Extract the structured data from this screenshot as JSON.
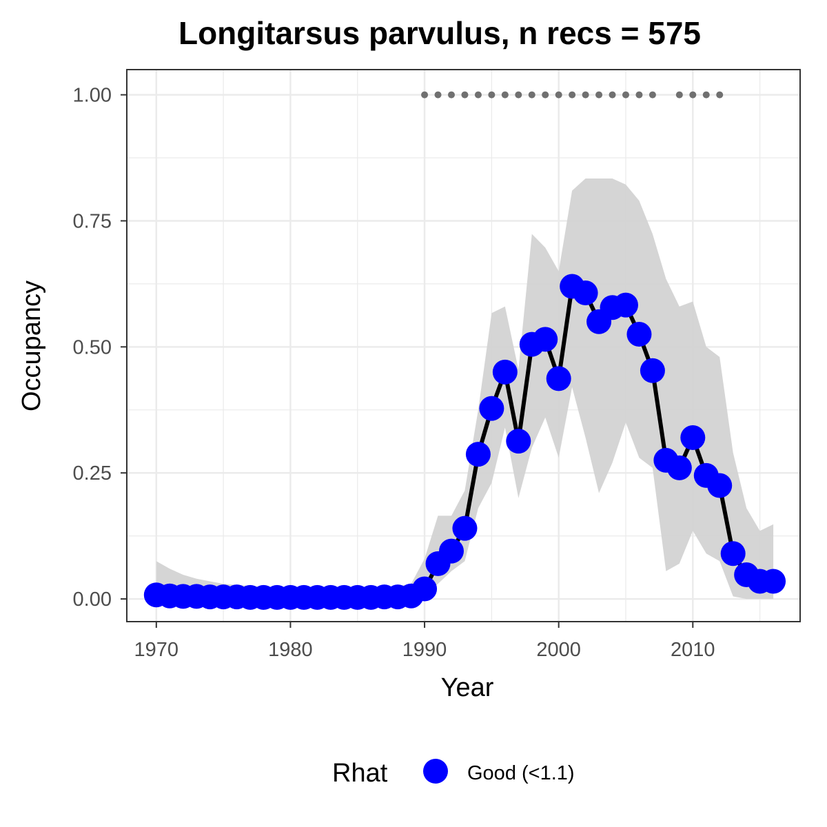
{
  "chart_data": {
    "type": "line",
    "title": "Longitarsus parvulus, n recs = 575",
    "xlabel": "Year",
    "ylabel": "Occupancy",
    "xlim": [
      1967.8,
      2018.0
    ],
    "ylim": [
      -0.045,
      1.05
    ],
    "x_ticks": [
      1970,
      1980,
      1990,
      2000,
      2010
    ],
    "x_tick_labels": [
      "1970",
      "1980",
      "1990",
      "2000",
      "2010"
    ],
    "y_ticks": [
      0,
      0.25,
      0.5,
      0.75,
      1.0
    ],
    "y_tick_labels": [
      "0.00",
      "0.25",
      "0.50",
      "0.75",
      "1.00"
    ],
    "grid": true,
    "legend_position": "bottom",
    "colors": {
      "points": "#0000ff",
      "line": "#000000",
      "ribbon": "#d3d3d3",
      "record_dots": "#707070",
      "grid": "#ebebeb",
      "border": "#333333"
    },
    "legend": {
      "title": "Rhat",
      "entries": [
        "Good (<1.1)"
      ]
    },
    "series": [
      {
        "name": "Good (<1.1)",
        "x": [
          1970,
          1971,
          1972,
          1973,
          1974,
          1975,
          1976,
          1977,
          1978,
          1979,
          1980,
          1981,
          1982,
          1983,
          1984,
          1985,
          1986,
          1987,
          1988,
          1989,
          1990,
          1991,
          1992,
          1993,
          1994,
          1995,
          1996,
          1997,
          1998,
          1999,
          2000,
          2001,
          2002,
          2003,
          2004,
          2005,
          2006,
          2007,
          2008,
          2009,
          2010,
          2011,
          2012,
          2013,
          2014,
          2015,
          2016
        ],
        "y": [
          0.008,
          0.006,
          0.005,
          0.005,
          0.004,
          0.004,
          0.004,
          0.003,
          0.003,
          0.003,
          0.003,
          0.003,
          0.003,
          0.003,
          0.003,
          0.003,
          0.003,
          0.004,
          0.004,
          0.006,
          0.02,
          0.07,
          0.095,
          0.14,
          0.287,
          0.378,
          0.45,
          0.313,
          0.505,
          0.515,
          0.437,
          0.62,
          0.607,
          0.55,
          0.578,
          0.583,
          0.525,
          0.453,
          0.275,
          0.26,
          0.32,
          0.245,
          0.225,
          0.09,
          0.048,
          0.035,
          0.035
        ],
        "lower": [
          0,
          0,
          0,
          0,
          0,
          0,
          0,
          0,
          0,
          0,
          0,
          0,
          0,
          0,
          0,
          0,
          0,
          0,
          0,
          0,
          0.002,
          0.03,
          0.055,
          0.075,
          0.18,
          0.23,
          0.34,
          0.2,
          0.3,
          0.36,
          0.28,
          0.42,
          0.32,
          0.21,
          0.27,
          0.35,
          0.28,
          0.26,
          0.055,
          0.07,
          0.135,
          0.09,
          0.075,
          0.005,
          0,
          0,
          0
        ],
        "upper": [
          0.075,
          0.06,
          0.048,
          0.04,
          0.035,
          0.03,
          0.028,
          0.026,
          0.024,
          0.022,
          0.022,
          0.022,
          0.022,
          0.022,
          0.022,
          0.022,
          0.022,
          0.022,
          0.025,
          0.03,
          0.08,
          0.165,
          0.165,
          0.215,
          0.375,
          0.567,
          0.58,
          0.455,
          0.724,
          0.697,
          0.65,
          0.81,
          0.834,
          0.834,
          0.834,
          0.822,
          0.79,
          0.724,
          0.635,
          0.58,
          0.59,
          0.5,
          0.48,
          0.29,
          0.18,
          0.135,
          0.148
        ]
      }
    ],
    "record_years": [
      1990,
      1991,
      1992,
      1993,
      1994,
      1995,
      1996,
      1997,
      1998,
      1999,
      2000,
      2001,
      2002,
      2003,
      2004,
      2005,
      2006,
      2007,
      2009,
      2010,
      2011,
      2012
    ],
    "record_y": 1.0
  }
}
